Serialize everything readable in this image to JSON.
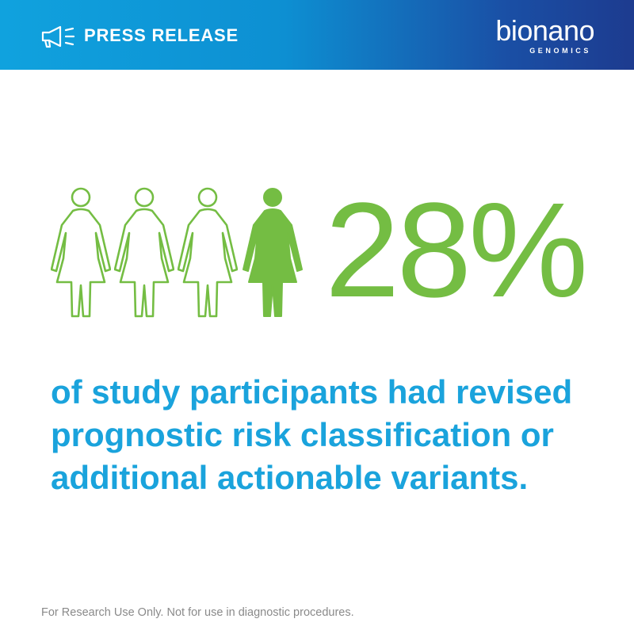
{
  "header": {
    "icon": "megaphone-icon",
    "label": "PRESS RELEASE",
    "logo_word": "bionano",
    "logo_sub": "GENOMICS"
  },
  "stat": {
    "value": "28%",
    "figures_total": 4,
    "figures_highlighted": 1
  },
  "caption": {
    "line1": "of study participants had revised",
    "line2": "prognostic risk classification or",
    "line3": "additional actionable variants."
  },
  "footer": {
    "text": "For Research Use Only. Not for use in diagnostic procedures."
  },
  "colors": {
    "green": "#74bd43",
    "blue_text": "#1aa3dc",
    "banner_start": "#10a2de",
    "banner_end": "#1d3b8f"
  }
}
